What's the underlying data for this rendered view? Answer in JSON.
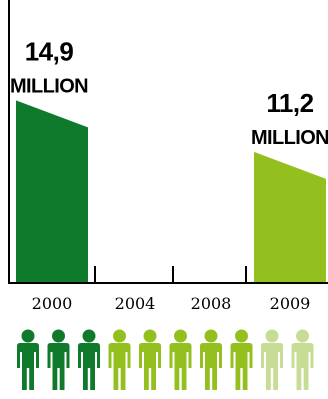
{
  "chart_data": {
    "type": "bar",
    "categories": [
      "2000",
      "2004",
      "2008",
      "2009"
    ],
    "values": [
      14.9,
      null,
      null,
      11.2
    ],
    "value_labels": [
      {
        "category": "2000",
        "number": "14,9",
        "unit": "MILLION"
      },
      {
        "category": "2009",
        "number": "11,2",
        "unit": "MILLION"
      }
    ],
    "ylim": [
      0,
      16
    ],
    "grid": false,
    "colors": {
      "bar_2000": "#0f7a2c",
      "bar_2009": "#93c01f",
      "axis": "#000000"
    }
  },
  "pictogram": {
    "figures": [
      {
        "shade": "dark",
        "color": "#0f7a2c"
      },
      {
        "shade": "dark",
        "color": "#0f7a2c"
      },
      {
        "shade": "dark",
        "color": "#0f7a2c"
      },
      {
        "shade": "medium",
        "color": "#93c01f"
      },
      {
        "shade": "medium",
        "color": "#93c01f"
      },
      {
        "shade": "medium",
        "color": "#93c01f"
      },
      {
        "shade": "medium",
        "color": "#93c01f"
      },
      {
        "shade": "medium",
        "color": "#93c01f"
      },
      {
        "shade": "light",
        "color": "#c7dc94"
      },
      {
        "shade": "light",
        "color": "#c7dc94"
      }
    ],
    "icon": "person-icon"
  }
}
